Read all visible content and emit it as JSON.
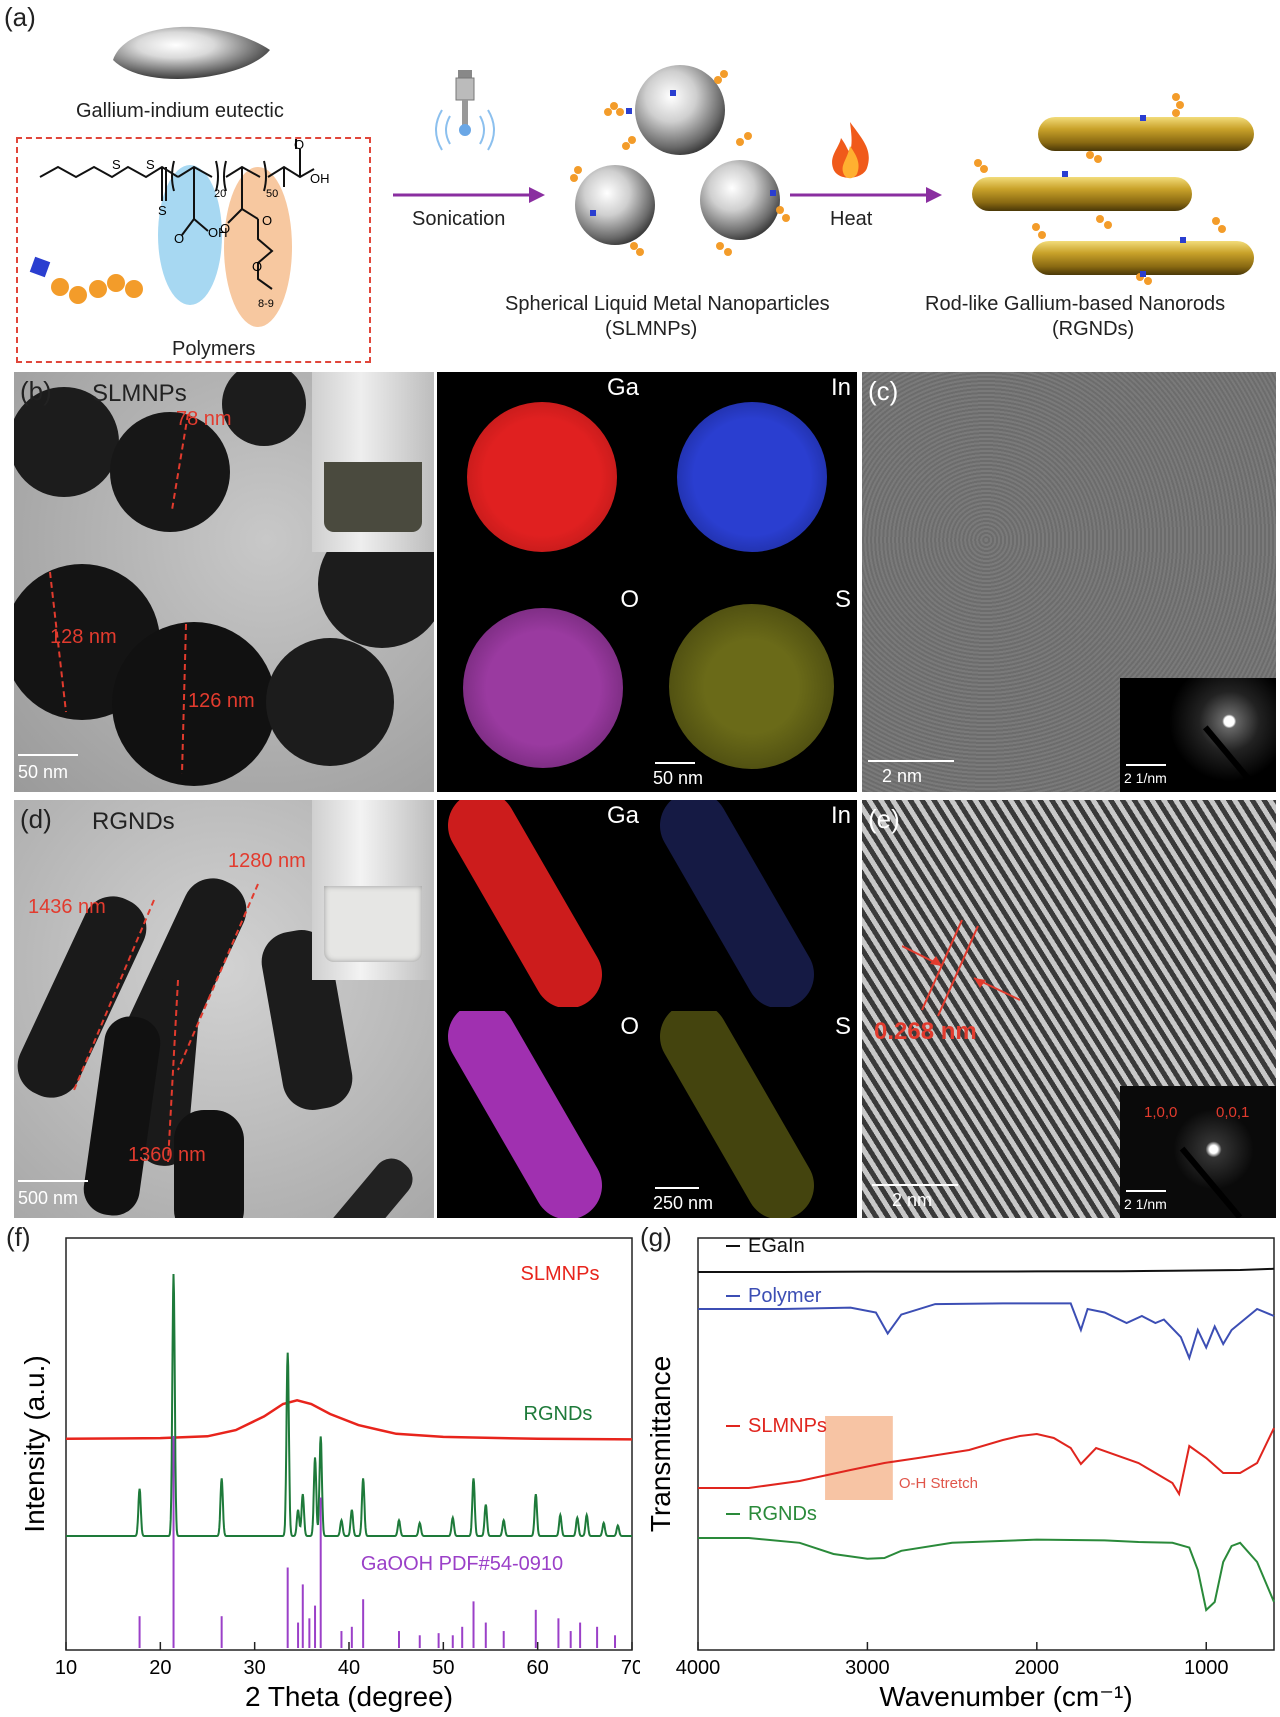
{
  "panel_a": {
    "label": "(a)",
    "eutectic_caption": "Gallium-indium eutectic",
    "polymers_caption": "Polymers",
    "sonication_label": "Sonication",
    "heat_label": "Heat",
    "sph_caption_1": "Spherical Liquid Metal Nanoparticles",
    "sph_caption_2": "(SLMNPs)",
    "rod_caption_1": "Rod-like Gallium-based Nanorods",
    "rod_caption_2": "(RGNDs)",
    "chem_s1": "S",
    "chem_s2": "S",
    "chem_s3": "S",
    "chem_n20": "20",
    "chem_n50": "50",
    "chem_oh1": "OH",
    "chem_oh2": "OH",
    "chem_o1": "O",
    "chem_o2": "O",
    "chem_o3": "O",
    "chem_o4": "O",
    "chem_o5": "O",
    "chem_n89": "8-9"
  },
  "panel_b": {
    "label": "(b)",
    "sample": "SLMNPs",
    "d1": "78 nm",
    "d2": "128 nm",
    "d3": "126 nm",
    "scale": "50 nm",
    "map_scale": "50 nm",
    "elements": [
      "Ga",
      "In",
      "O",
      "S"
    ]
  },
  "panel_c": {
    "label": "(c)",
    "scale": "2 nm",
    "inset_scale": "2 1/nm"
  },
  "panel_d": {
    "label": "(d)",
    "sample": "RGNDs",
    "d1": "1436 nm",
    "d2": "1280 nm",
    "d3": "1360 nm",
    "scale": "500 nm",
    "map_scale": "250 nm",
    "elements": [
      "Ga",
      "In",
      "O",
      "S"
    ]
  },
  "panel_e": {
    "label": "(e)",
    "spacing": "0.268 nm",
    "scale": "2 nm",
    "inset_scale": "2 1/nm",
    "index1": "1,0,0",
    "index2": "0,0,1"
  },
  "chart_data": [
    {
      "type": "line",
      "panel": "(f)",
      "xlabel": "2 Theta (degree)",
      "ylabel": "Intensity (a.u.)",
      "xlim": [
        10,
        70
      ],
      "xticks": [
        10,
        20,
        30,
        40,
        50,
        60,
        70
      ],
      "series": [
        {
          "name": "SLMNPs",
          "color": "#e8241c",
          "kind": "broad",
          "x": [
            10,
            20,
            25,
            28,
            31,
            33,
            34.5,
            36,
            38,
            41,
            45,
            50,
            60,
            70
          ],
          "y": [
            0.02,
            0.03,
            0.06,
            0.16,
            0.38,
            0.58,
            0.64,
            0.58,
            0.42,
            0.24,
            0.1,
            0.05,
            0.02,
            0.01
          ]
        },
        {
          "name": "RGNDs",
          "color": "#1e7a3a",
          "kind": "peaks",
          "peaks": [
            [
              17.8,
              0.18
            ],
            [
              21.4,
              1.0
            ],
            [
              26.5,
              0.22
            ],
            [
              33.5,
              0.7
            ],
            [
              34.6,
              0.1
            ],
            [
              35.1,
              0.16
            ],
            [
              36.4,
              0.3
            ],
            [
              37.0,
              0.38
            ],
            [
              39.2,
              0.06
            ],
            [
              40.3,
              0.1
            ],
            [
              41.5,
              0.22
            ],
            [
              45.3,
              0.06
            ],
            [
              47.5,
              0.05
            ],
            [
              51.0,
              0.07
            ],
            [
              53.2,
              0.22
            ],
            [
              54.5,
              0.12
            ],
            [
              56.4,
              0.06
            ],
            [
              59.8,
              0.16
            ],
            [
              62.4,
              0.08
            ],
            [
              64.2,
              0.07
            ],
            [
              65.2,
              0.08
            ],
            [
              67.0,
              0.05
            ],
            [
              68.5,
              0.04
            ]
          ]
        },
        {
          "name": "GaOOH PDF#54-0910",
          "color": "#9b40c8",
          "kind": "sticks",
          "peaks": [
            [
              17.8,
              0.15
            ],
            [
              21.4,
              1.0
            ],
            [
              26.5,
              0.15
            ],
            [
              33.5,
              0.38
            ],
            [
              34.6,
              0.12
            ],
            [
              35.1,
              0.3
            ],
            [
              35.8,
              0.14
            ],
            [
              36.4,
              0.2
            ],
            [
              37.0,
              0.71
            ],
            [
              39.2,
              0.08
            ],
            [
              40.3,
              0.1
            ],
            [
              41.5,
              0.23
            ],
            [
              45.3,
              0.08
            ],
            [
              47.5,
              0.06
            ],
            [
              49.5,
              0.07
            ],
            [
              51.0,
              0.06
            ],
            [
              52.0,
              0.1
            ],
            [
              53.2,
              0.22
            ],
            [
              54.5,
              0.12
            ],
            [
              56.4,
              0.08
            ],
            [
              59.8,
              0.18
            ],
            [
              62.2,
              0.14
            ],
            [
              63.5,
              0.08
            ],
            [
              64.5,
              0.12
            ],
            [
              66.3,
              0.1
            ],
            [
              68.2,
              0.06
            ]
          ]
        }
      ]
    },
    {
      "type": "line",
      "panel": "(g)",
      "xlabel": "Wavenumber (cm⁻¹)",
      "ylabel": "Transmittance",
      "xlim": [
        4000,
        600
      ],
      "xticks": [
        4000,
        3000,
        2000,
        1000
      ],
      "annotation": "O-H Stretch",
      "highlight_x": [
        3250,
        2850
      ],
      "series": [
        {
          "name": "EGaIn",
          "color": "#111111",
          "x": [
            4000,
            3500,
            3000,
            2500,
            2000,
            1500,
            1200,
            1000,
            800,
            600
          ],
          "y": [
            0.0,
            0.0,
            0.1,
            0.1,
            0.15,
            0.2,
            0.3,
            0.4,
            0.5,
            0.8
          ]
        },
        {
          "name": "Polymer",
          "color": "#3c4eb4",
          "x": [
            4000,
            3500,
            3100,
            2950,
            2880,
            2800,
            2600,
            2200,
            1800,
            1740,
            1700,
            1600,
            1470,
            1380,
            1300,
            1250,
            1150,
            1100,
            1050,
            1000,
            950,
            900,
            850,
            800,
            700,
            600
          ],
          "y": [
            1.0,
            1.0,
            0.8,
            1.5,
            4.5,
            1.8,
            0.3,
            0.2,
            0.2,
            4.0,
            1.0,
            1.5,
            3.0,
            2.0,
            3.0,
            2.5,
            5.0,
            8.0,
            4.0,
            6.5,
            3.5,
            6.0,
            4.0,
            3.0,
            1.0,
            2.0
          ]
        },
        {
          "name": "SLMNPs",
          "color": "#e0251e",
          "x": [
            4000,
            3700,
            3400,
            3100,
            2900,
            2700,
            2400,
            2200,
            2100,
            2000,
            1900,
            1800,
            1740,
            1650,
            1400,
            1200,
            1160,
            1100,
            1000,
            900,
            800,
            700,
            600
          ],
          "y": [
            7.0,
            7.0,
            6.3,
            5.2,
            4.5,
            4.0,
            3.2,
            2.2,
            1.8,
            1.6,
            2.0,
            3.0,
            4.6,
            3.0,
            4.5,
            6.5,
            7.6,
            2.8,
            4.0,
            5.5,
            5.5,
            4.5,
            1.0
          ]
        },
        {
          "name": "RGNDs",
          "color": "#2a8a3a",
          "x": [
            4000,
            3700,
            3400,
            3200,
            3000,
            2900,
            2800,
            2500,
            2000,
            1600,
            1400,
            1200,
            1100,
            1050,
            1000,
            950,
            900,
            850,
            800,
            700,
            600
          ],
          "y": [
            1.0,
            1.0,
            1.6,
            3.0,
            3.6,
            3.5,
            2.6,
            1.6,
            1.2,
            1.3,
            1.5,
            1.6,
            2.2,
            5.0,
            10.0,
            9.0,
            4.0,
            2.0,
            1.6,
            4.0,
            9.0
          ]
        }
      ]
    }
  ],
  "colors": {
    "ga": "#d41f1f",
    "in": "#2a3ed0",
    "o": "#c250c8",
    "s": "#c8c020",
    "accent_red": "#e23b2e",
    "arrow": "#8a2ea0"
  }
}
